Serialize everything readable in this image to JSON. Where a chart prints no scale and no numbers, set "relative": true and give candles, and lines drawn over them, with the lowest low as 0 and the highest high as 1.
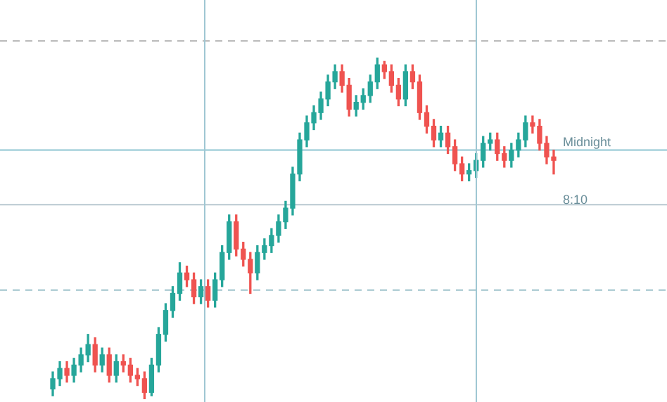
{
  "chart_data": {
    "type": "candlestick",
    "relative": true,
    "categories": [
      null,
      null,
      null,
      null,
      null,
      null,
      null,
      null,
      null,
      null,
      null,
      null,
      null,
      null,
      null,
      null,
      null,
      null,
      null,
      null,
      null,
      null,
      null,
      null,
      null,
      null,
      null,
      null,
      null,
      null,
      null,
      null,
      null,
      null,
      null,
      null,
      null,
      null,
      null,
      null,
      null,
      null,
      null,
      null,
      null,
      null,
      null,
      null,
      null,
      null,
      null,
      null,
      null,
      null,
      null,
      null,
      null,
      null,
      null,
      null,
      null,
      null,
      null,
      null,
      null,
      null,
      null,
      null,
      null,
      null,
      null,
      null
    ],
    "ohlc": [
      [
        0.03,
        0.08,
        0.01,
        0.06
      ],
      [
        0.06,
        0.11,
        0.04,
        0.09
      ],
      [
        0.09,
        0.11,
        0.05,
        0.07
      ],
      [
        0.07,
        0.12,
        0.05,
        0.1
      ],
      [
        0.1,
        0.15,
        0.08,
        0.13
      ],
      [
        0.13,
        0.19,
        0.11,
        0.16
      ],
      [
        0.16,
        0.18,
        0.08,
        0.1
      ],
      [
        0.1,
        0.15,
        0.08,
        0.13
      ],
      [
        0.13,
        0.15,
        0.05,
        0.07
      ],
      [
        0.07,
        0.13,
        0.05,
        0.11
      ],
      [
        0.11,
        0.13,
        0.08,
        0.1
      ],
      [
        0.1,
        0.12,
        0.05,
        0.07
      ],
      [
        0.07,
        0.09,
        0.04,
        0.06
      ],
      [
        0.06,
        0.08,
        0,
        0.02
      ],
      [
        0.02,
        0.12,
        0.01,
        0.1
      ],
      [
        0.1,
        0.21,
        0.08,
        0.19
      ],
      [
        0.19,
        0.28,
        0.17,
        0.26
      ],
      [
        0.26,
        0.33,
        0.24,
        0.31
      ],
      [
        0.31,
        0.4,
        0.29,
        0.37
      ],
      [
        0.37,
        0.39,
        0.33,
        0.35
      ],
      [
        0.35,
        0.37,
        0.28,
        0.3
      ],
      [
        0.3,
        0.35,
        0.28,
        0.33
      ],
      [
        0.33,
        0.35,
        0.27,
        0.29
      ],
      [
        0.29,
        0.37,
        0.27,
        0.35
      ],
      [
        0.35,
        0.45,
        0.33,
        0.43
      ],
      [
        0.43,
        0.54,
        0.41,
        0.52
      ],
      [
        0.52,
        0.54,
        0.42,
        0.44
      ],
      [
        0.44,
        0.46,
        0.39,
        0.41
      ],
      [
        0.41,
        0.43,
        0.31,
        0.37
      ],
      [
        0.37,
        0.45,
        0.35,
        0.43
      ],
      [
        0.43,
        0.47,
        0.41,
        0.45
      ],
      [
        0.45,
        0.5,
        0.43,
        0.48
      ],
      [
        0.48,
        0.54,
        0.46,
        0.52
      ],
      [
        0.52,
        0.58,
        0.5,
        0.56
      ],
      [
        0.56,
        0.68,
        0.54,
        0.66
      ],
      [
        0.66,
        0.78,
        0.64,
        0.76
      ],
      [
        0.76,
        0.83,
        0.74,
        0.81
      ],
      [
        0.81,
        0.86,
        0.79,
        0.84
      ],
      [
        0.84,
        0.9,
        0.82,
        0.88
      ],
      [
        0.88,
        0.95,
        0.86,
        0.93
      ],
      [
        0.93,
        0.98,
        0.91,
        0.96
      ],
      [
        0.96,
        0.98,
        0.9,
        0.92
      ],
      [
        0.92,
        0.94,
        0.83,
        0.85
      ],
      [
        0.85,
        0.89,
        0.83,
        0.87
      ],
      [
        0.87,
        0.91,
        0.85,
        0.89
      ],
      [
        0.89,
        0.95,
        0.87,
        0.93
      ],
      [
        0.93,
        1,
        0.91,
        0.98
      ],
      [
        0.98,
        0.99,
        0.94,
        0.96
      ],
      [
        0.96,
        0.98,
        0.9,
        0.92
      ],
      [
        0.92,
        0.94,
        0.86,
        0.88
      ],
      [
        0.88,
        0.98,
        0.86,
        0.96
      ],
      [
        0.96,
        0.98,
        0.91,
        0.93
      ],
      [
        0.93,
        0.95,
        0.82,
        0.84
      ],
      [
        0.84,
        0.86,
        0.78,
        0.8
      ],
      [
        0.8,
        0.82,
        0.74,
        0.76
      ],
      [
        0.76,
        0.8,
        0.74,
        0.78
      ],
      [
        0.78,
        0.8,
        0.72,
        0.74
      ],
      [
        0.74,
        0.76,
        0.67,
        0.69
      ],
      [
        0.69,
        0.71,
        0.64,
        0.66
      ],
      [
        0.66,
        0.69,
        0.64,
        0.67
      ],
      [
        0.67,
        0.72,
        0.65,
        0.7
      ],
      [
        0.7,
        0.77,
        0.68,
        0.75
      ],
      [
        0.75,
        0.78,
        0.73,
        0.76
      ],
      [
        0.76,
        0.78,
        0.7,
        0.72
      ],
      [
        0.72,
        0.74,
        0.68,
        0.7
      ],
      [
        0.7,
        0.75,
        0.68,
        0.73
      ],
      [
        0.73,
        0.78,
        0.71,
        0.76
      ],
      [
        0.76,
        0.83,
        0.74,
        0.81
      ],
      [
        0.81,
        0.83,
        0.78,
        0.8
      ],
      [
        0.8,
        0.82,
        0.73,
        0.75
      ],
      [
        0.75,
        0.77,
        0.69,
        0.71
      ],
      [
        0.71,
        0.73,
        0.66,
        0.7
      ]
    ],
    "colors": [
      "#26a69a",
      "#26a69a",
      "#ef5350",
      "#26a69a",
      "#26a69a",
      "#26a69a",
      "#ef5350",
      "#26a69a",
      "#ef5350",
      "#26a69a",
      "#ef5350",
      "#ef5350",
      "#ef5350",
      "#ef5350",
      "#26a69a",
      "#26a69a",
      "#26a69a",
      "#26a69a",
      "#26a69a",
      "#ef5350",
      "#ef5350",
      "#26a69a",
      "#ef5350",
      "#26a69a",
      "#26a69a",
      "#26a69a",
      "#ef5350",
      "#ef5350",
      "#ef5350",
      "#26a69a",
      "#26a69a",
      "#26a69a",
      "#26a69a",
      "#26a69a",
      "#26a69a",
      "#26a69a",
      "#26a69a",
      "#26a69a",
      "#26a69a",
      "#26a69a",
      "#26a69a",
      "#ef5350",
      "#ef5350",
      "#26a69a",
      "#26a69a",
      "#26a69a",
      "#26a69a",
      "#ef5350",
      "#ef5350",
      "#ef5350",
      "#26a69a",
      "#ef5350",
      "#ef5350",
      "#ef5350",
      "#ef5350",
      "#26a69a",
      "#ef5350",
      "#ef5350",
      "#ef5350",
      "#26a69a",
      "#26a69a",
      "#26a69a",
      "#26a69a",
      "#ef5350",
      "#ef5350",
      "#26a69a",
      "#26a69a",
      "#26a69a",
      "#ef5350",
      "#ef5350",
      "#ef5350",
      "#ef5350"
    ],
    "ref_lines": [
      {
        "axis": "y",
        "value": 1.05,
        "color": "#b0b0b0",
        "line_style": "dashed"
      },
      {
        "axis": "y",
        "value": 0.73,
        "label": "Midnight",
        "color": "#8ec5d2",
        "line_style": "solid"
      },
      {
        "axis": "y",
        "value": 0.57,
        "color": "#b8c8d0",
        "line_style": "solid"
      },
      {
        "axis": "y",
        "value": 0.32,
        "color": "#9ec3cc",
        "line_style": "dashed"
      }
    ],
    "annotations": [
      "8:10"
    ]
  }
}
